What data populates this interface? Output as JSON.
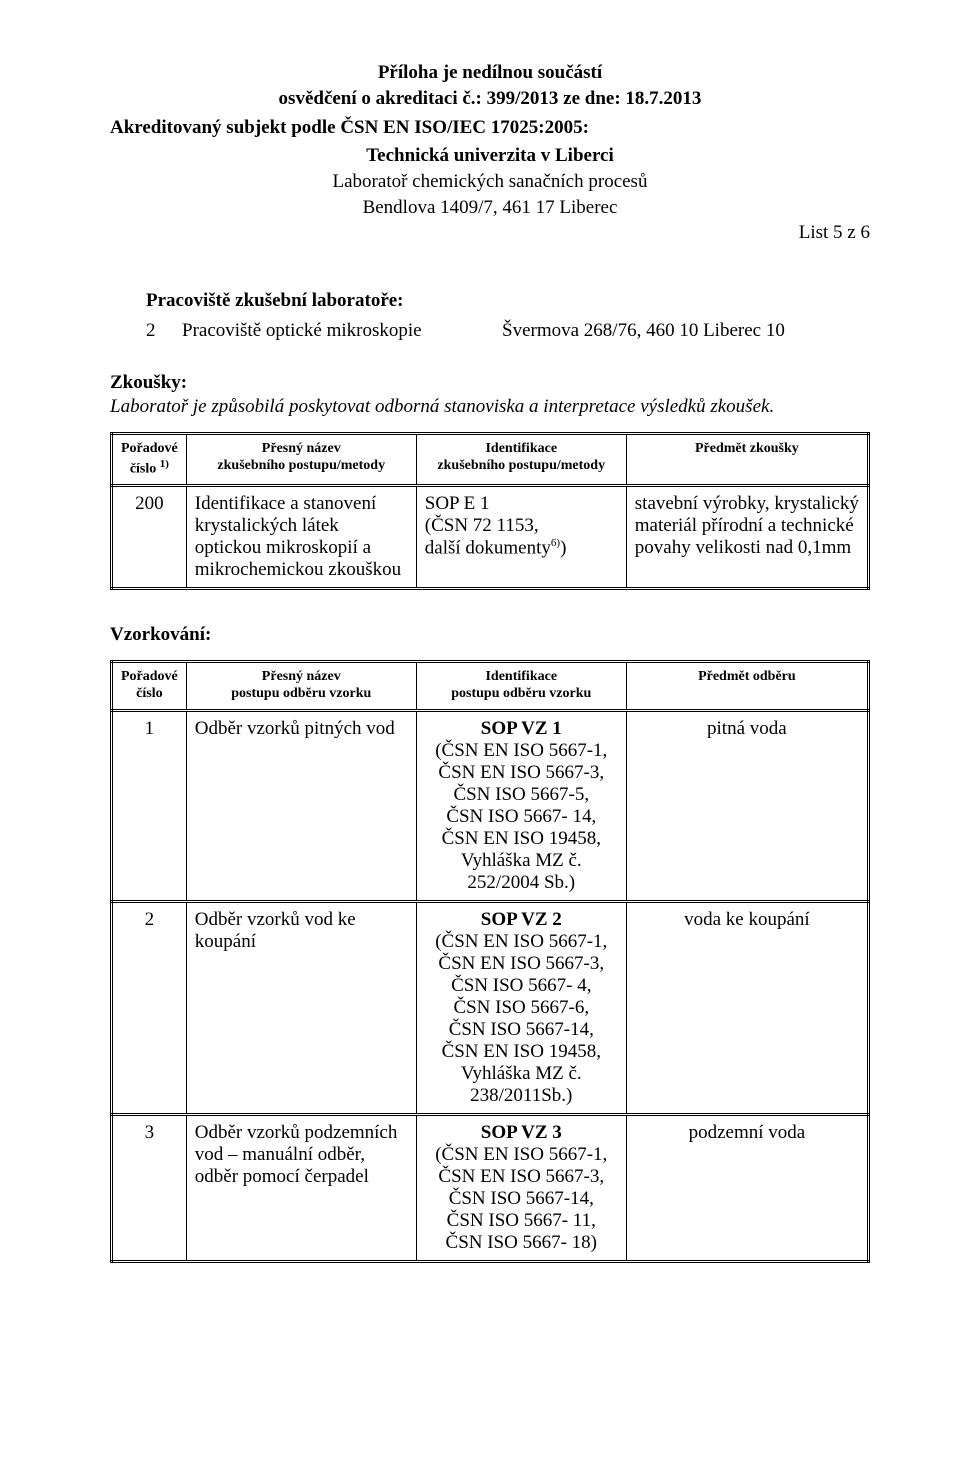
{
  "header": {
    "line1": "Příloha je nedílnou součástí",
    "line2": "osvědčení o akreditaci č.: 399/2013 ze dne: 18.7.2013",
    "accredited_subject": "Akreditovaný subjekt podle ČSN EN ISO/IEC 17025:2005:",
    "uni": "Technická univerzita v Liberci",
    "lab": "Laboratoř chemických sanačních procesů",
    "addr": "Bendlova 1409/7, 461 17  Liberec",
    "list_page": "List 5 z 6"
  },
  "workplace": {
    "title": "Pracoviště zkušební laboratoře:",
    "num": "2",
    "name": "Pracoviště optické mikroskopie",
    "addr": "Švermova 268/76, 460 10  Liberec 10"
  },
  "tests": {
    "title": "Zkoušky:",
    "note": "Laboratoř je způsobilá poskytovat odborná stanoviska a interpretace výsledků zkoušek.",
    "columns": {
      "num_l1": "Pořadové",
      "num_l2": "číslo",
      "num_sup": "1)",
      "name_l1": "Přesný název",
      "name_l2": "zkušebního postupu/metody",
      "ident_l1": "Identifikace",
      "ident_l2": "zkušebního postupu/metody",
      "subject": "Předmět zkoušky"
    },
    "rows": [
      {
        "num": "200",
        "name": "Identifikace a stanovení krystalických látek optickou mikroskopií a mikrochemickou zkouškou",
        "ident_l1": "SOP E 1",
        "ident_l2": "(ČSN 72 1153,",
        "ident_l3": "další dokumenty",
        "ident_sup": "6)",
        "ident_close": ")",
        "subject": "stavební výrobky, krystalický materiál přírodní a technické povahy velikosti nad 0,1mm"
      }
    ]
  },
  "sampling": {
    "title": "Vzorkování:",
    "columns": {
      "num_l1": "Pořadové",
      "num_l2": "číslo",
      "name_l1": "Přesný název",
      "name_l2": "postupu odběru vzorku",
      "ident_l1": "Identifikace",
      "ident_l2": "postupu odběru vzorku",
      "subject": "Předmět odběru"
    },
    "rows": [
      {
        "num": "1",
        "name": "Odběr vzorků pitných vod",
        "ident": "SOP VZ 1\n(ČSN EN ISO 5667-1,\nČSN EN ISO 5667-3,\nČSN ISO 5667-5,\nČSN ISO 5667- 14,\nČSN EN ISO 19458,\nVyhláška MZ č. 252/2004 Sb.)",
        "subject": "pitná voda"
      },
      {
        "num": "2",
        "name": "Odběr vzorků vod ke koupání",
        "ident": "SOP VZ 2\n(ČSN EN ISO 5667-1,\nČSN EN ISO 5667-3,\nČSN ISO 5667- 4,\nČSN ISO 5667-6,\nČSN ISO 5667-14,\nČSN EN ISO 19458,\nVyhláška MZ č. 238/2011Sb.)",
        "subject": "voda ke koupání"
      },
      {
        "num": "3",
        "name": "Odběr vzorků podzemních vod – manuální odběr, odběr pomocí čerpadel",
        "ident": "SOP VZ 3\n(ČSN EN ISO 5667-1,\nČSN EN ISO 5667-3,\nČSN ISO 5667-14,\nČSN ISO 5667- 11,\nČSN ISO 5667- 18)",
        "subject": "podzemní voda"
      }
    ]
  }
}
